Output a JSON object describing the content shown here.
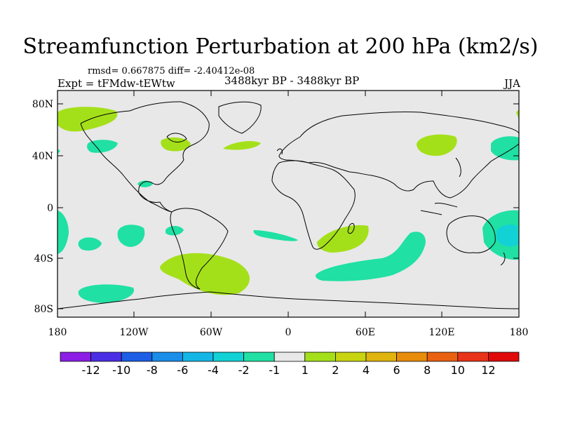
{
  "title": "Streamfunction Perturbation at 200 hPa (km2/s)",
  "stats": "rmsd= 0.667875 diff= -2.40412e-08",
  "experiment": "Expt = tFMdw-tEWtw",
  "period": "3488kyr BP - 3488kyr BP",
  "season": "JJA",
  "lat_labels": [
    "80N",
    "40N",
    "0",
    "40S",
    "80S"
  ],
  "lon_labels": [
    "180",
    "120W",
    "60W",
    "0",
    "60E",
    "120E",
    "180"
  ],
  "colorbar": {
    "labels": [
      "-12",
      "-10",
      "-8",
      "-6",
      "-4",
      "-2",
      "-1",
      "1",
      "2",
      "4",
      "6",
      "8",
      "10",
      "12"
    ],
    "colors": [
      "#8c1ee6",
      "#4a2ee6",
      "#1c5ee6",
      "#1a8ee8",
      "#14b6e6",
      "#12d2d6",
      "#20e0a4",
      "#e8e8e8",
      "#a4e01a",
      "#c8d410",
      "#e0b40e",
      "#e88c0c",
      "#e86010",
      "#e83418",
      "#e00a0a"
    ]
  },
  "colors": {
    "ocean_bg": "#e8e8e8",
    "pos1": "#a4e01a",
    "neg1": "#20e0a4",
    "neg2": "#12d2d6",
    "coast": "#000000"
  }
}
